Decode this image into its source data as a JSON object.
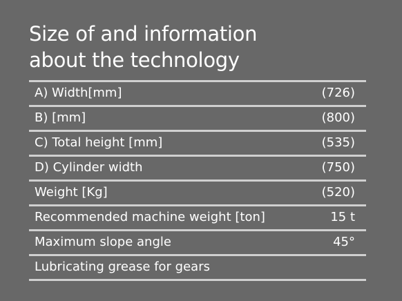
{
  "header": {
    "title": [
      "Size of and information",
      "about the technology"
    ]
  },
  "table": {
    "rows": [
      [
        "A) Width[mm]",
        "(726)"
      ],
      [
        "B) [mm]",
        "(800)"
      ],
      [
        "C) Total height [mm]",
        "(535)"
      ],
      [
        "D) Cylinder width",
        "(750)"
      ],
      [
        "Weight [Kg]",
        "(520)"
      ],
      [
        "Recommended machine weight [ton]",
        "15 t"
      ],
      [
        "Maximum slope angle",
        "45°"
      ],
      [
        "Lubricating grease for gears"
      ]
    ]
  }
}
